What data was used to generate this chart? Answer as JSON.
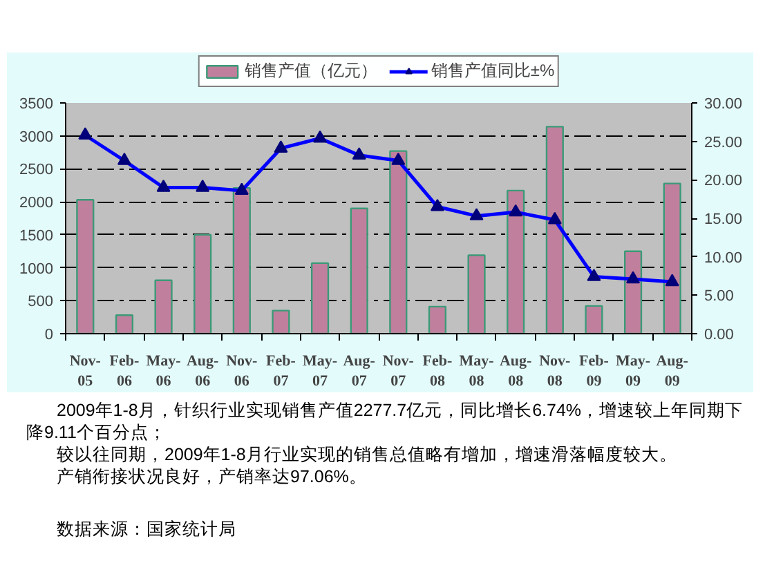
{
  "chart_data": {
    "type": "bar",
    "legend": "top",
    "grid": "y",
    "categories": [
      "Nov-05",
      "Feb-06",
      "May-06",
      "Aug-06",
      "Nov-06",
      "Feb-07",
      "May-07",
      "Aug-07",
      "Nov-07",
      "Feb-08",
      "May-08",
      "Aug-08",
      "Nov-08",
      "Feb-09",
      "May-09",
      "Aug-09"
    ],
    "series": [
      {
        "name": "销售产值（亿元）",
        "color": "#c0809d",
        "values": [
          2030,
          280,
          810,
          1500,
          2210,
          350,
          1070,
          1900,
          2770,
          410,
          1190,
          2170,
          3140,
          420,
          1250,
          2277.7
        ]
      },
      {
        "name": "销售产值同比±%",
        "type": "line",
        "axis": "y2",
        "color": "#0000ff",
        "marker": "triangle",
        "values": [
          25.8,
          22.5,
          19.0,
          19.0,
          18.6,
          24.1,
          25.4,
          23.2,
          22.5,
          16.5,
          15.3,
          15.8,
          14.8,
          7.4,
          7.1,
          6.74
        ]
      }
    ],
    "ylim": [
      0,
      3500
    ],
    "yticks": [
      0,
      500,
      1000,
      1500,
      2000,
      2500,
      3000,
      3500
    ],
    "y2lim": [
      0,
      30
    ],
    "y2ticks": [
      {
        "value": 0,
        "label": "0.00"
      },
      {
        "value": 5,
        "label": "5.00"
      },
      {
        "value": 10,
        "label": "10.00"
      },
      {
        "value": 15,
        "label": "15.00"
      },
      {
        "value": 20,
        "label": "20.00"
      },
      {
        "value": 25,
        "label": "25.00"
      },
      {
        "value": 30,
        "label": "30.00"
      }
    ],
    "annotations": [
      "2009年1-8月，针织行业实现销售产值2277.7亿元，同比增长6.74%，增速较上年同期下降9.11个百分点；",
      "较以往同期，2009年1-8月行业实现的销售总值略有增加，增速滑落幅度较大。",
      "产销衔接状况良好，产销率达97.06%。",
      "数据来源：国家统计局"
    ]
  }
}
